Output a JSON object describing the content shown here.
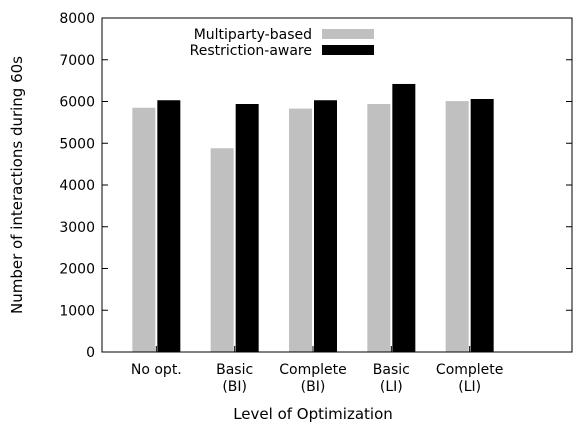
{
  "chart_data": {
    "type": "bar",
    "title": "",
    "xlabel": "Level of Optimization",
    "ylabel": "Number of interactions during 60s",
    "ylim": [
      0,
      8000
    ],
    "yticks": [
      "0",
      "1000",
      "2000",
      "3000",
      "4000",
      "5000",
      "6000",
      "7000",
      "8000"
    ],
    "categories": [
      "No opt.",
      "Basic\n(BI)",
      "Complete\n(BI)",
      "Basic\n(LI)",
      "Complete\n(LI)"
    ],
    "series": [
      {
        "name": "Multiparty-based",
        "color": "#c0c0c0",
        "values": [
          5850,
          4880,
          5830,
          5940,
          6010
        ]
      },
      {
        "name": "Restriction-aware",
        "color": "#000000",
        "values": [
          6030,
          5940,
          6030,
          6420,
          6060
        ]
      }
    ],
    "legend_position": "top-left",
    "grid": false
  }
}
